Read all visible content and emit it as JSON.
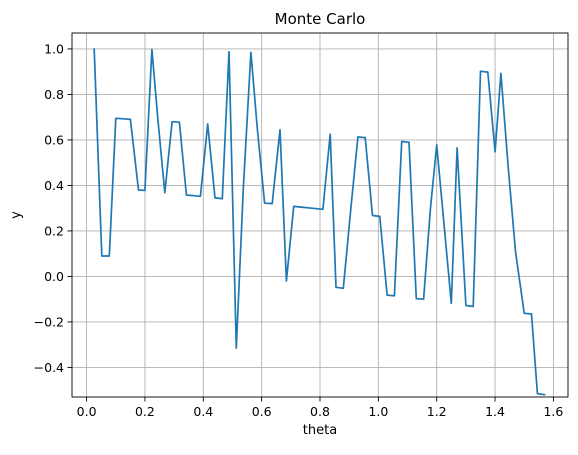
{
  "chart_data": {
    "type": "line",
    "title": "Monte Carlo",
    "xlabel": "theta",
    "ylabel": "y",
    "xlim": [
      -0.05,
      1.65
    ],
    "ylim": [
      -0.53,
      1.07
    ],
    "xticks": [
      0.0,
      0.2,
      0.4,
      0.6,
      0.8,
      1.0,
      1.2,
      1.4,
      1.6
    ],
    "xtick_labels": [
      "0.0",
      "0.2",
      "0.4",
      "0.6",
      "0.8",
      "1.0",
      "1.2",
      "1.4",
      "1.6"
    ],
    "yticks": [
      -0.4,
      -0.2,
      0.0,
      0.2,
      0.4,
      0.6,
      0.8,
      1.0
    ],
    "ytick_labels": [
      "−0.4",
      "−0.2",
      "0.0",
      "0.2",
      "0.4",
      "0.6",
      "0.8",
      "1.0"
    ],
    "grid": true,
    "color": "#1f77b4",
    "series": [
      {
        "x": [
          0.026,
          0.052,
          0.078,
          0.1,
          0.127,
          0.15,
          0.178,
          0.2,
          0.224,
          0.245,
          0.268,
          0.293,
          0.318,
          0.342,
          0.39,
          0.415,
          0.44,
          0.465,
          0.488,
          0.513,
          0.537,
          0.563,
          0.585,
          0.61,
          0.636,
          0.663,
          0.685,
          0.71,
          0.81,
          0.835,
          0.855,
          0.88,
          0.905,
          0.93,
          0.955,
          0.98,
          1.005,
          1.03,
          1.055,
          1.08,
          1.105,
          1.13,
          1.155,
          1.178,
          1.2,
          1.25,
          1.27,
          1.3,
          1.325,
          1.35,
          1.375,
          1.4,
          1.42,
          1.445,
          1.47,
          1.5,
          1.525,
          1.545,
          1.57
        ],
        "y": [
          1.0,
          0.09,
          0.09,
          0.695,
          0.693,
          0.69,
          0.38,
          0.378,
          0.998,
          0.68,
          0.368,
          0.68,
          0.678,
          0.358,
          0.352,
          0.67,
          0.345,
          0.342,
          0.988,
          -0.315,
          0.385,
          0.985,
          0.65,
          0.322,
          0.32,
          0.645,
          -0.02,
          0.308,
          0.295,
          0.625,
          -0.048,
          -0.052,
          0.287,
          0.613,
          0.61,
          0.268,
          0.264,
          -0.082,
          -0.085,
          0.593,
          0.59,
          -0.098,
          -0.1,
          0.292,
          0.578,
          -0.118,
          0.565,
          -0.128,
          -0.132,
          0.902,
          0.898,
          0.548,
          0.893,
          0.48,
          0.11,
          -0.162,
          -0.165,
          -0.515,
          -0.52
        ]
      }
    ]
  }
}
